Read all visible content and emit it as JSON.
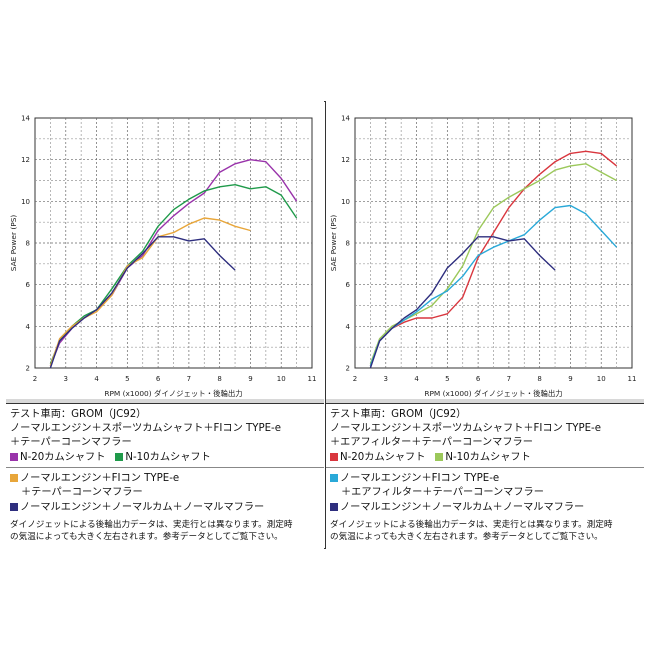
{
  "chart_data": [
    {
      "type": "line",
      "xlabel": "RPM (x1000) ダイノジェット・後輪出力",
      "ylabel": "SAE Power (PS)",
      "xlim": [
        2,
        11
      ],
      "ylim": [
        2,
        14
      ],
      "xticks": [
        2,
        3,
        4,
        5,
        6,
        7,
        8,
        9,
        10,
        11
      ],
      "yticks": [
        2,
        4,
        6,
        8,
        10,
        12,
        14
      ],
      "grid": true,
      "series": [
        {
          "name": "N-20カムシャフト",
          "color": "#9933aa",
          "x": [
            2.5,
            2.8,
            3.2,
            3.6,
            4.0,
            4.5,
            5.0,
            5.5,
            6.0,
            6.5,
            7.0,
            7.5,
            8.0,
            8.5,
            9.0,
            9.5,
            10.0,
            10.5
          ],
          "y": [
            2.1,
            3.2,
            3.9,
            4.4,
            4.8,
            5.5,
            6.8,
            7.4,
            8.6,
            9.3,
            9.9,
            10.4,
            11.4,
            11.8,
            12.0,
            11.9,
            11.1,
            10.0
          ]
        },
        {
          "name": "N-10カムシャフト",
          "color": "#1f9a4a",
          "x": [
            2.5,
            2.8,
            3.2,
            3.6,
            4.0,
            4.5,
            5.0,
            5.5,
            6.0,
            6.5,
            7.0,
            7.5,
            8.0,
            8.5,
            9.0,
            9.5,
            10.0,
            10.5
          ],
          "y": [
            2.2,
            3.3,
            4.0,
            4.5,
            4.8,
            5.8,
            6.9,
            7.6,
            8.8,
            9.6,
            10.1,
            10.5,
            10.7,
            10.8,
            10.6,
            10.7,
            10.3,
            9.2
          ]
        },
        {
          "color": "#e8a63a",
          "x": [
            2.5,
            2.8,
            3.2,
            3.6,
            4.0,
            4.5,
            5.0,
            5.5,
            6.0,
            6.5,
            7.0,
            7.5,
            8.0,
            8.5,
            9.0
          ],
          "y": [
            2.1,
            3.4,
            4.0,
            4.4,
            4.7,
            5.5,
            6.9,
            7.3,
            8.3,
            8.5,
            8.9,
            9.2,
            9.1,
            8.8,
            8.6
          ]
        },
        {
          "color": "#2e2e7e",
          "x": [
            2.5,
            2.8,
            3.2,
            3.6,
            4.0,
            4.5,
            5.0,
            5.5,
            6.0,
            6.5,
            7.0,
            7.5,
            8.0,
            8.5
          ],
          "y": [
            2.0,
            3.3,
            3.9,
            4.4,
            4.8,
            5.6,
            6.8,
            7.5,
            8.3,
            8.3,
            8.1,
            8.2,
            7.4,
            6.7
          ]
        }
      ]
    },
    {
      "type": "line",
      "xlabel": "RPM (x1000) ダイノジェット・後輪出力",
      "ylabel": "SAE Power (PS)",
      "xlim": [
        2,
        11
      ],
      "ylim": [
        2,
        14
      ],
      "xticks": [
        2,
        3,
        4,
        5,
        6,
        7,
        8,
        9,
        10,
        11
      ],
      "yticks": [
        2,
        4,
        6,
        8,
        10,
        12,
        14
      ],
      "grid": true,
      "series": [
        {
          "name": "N-20カムシャフト",
          "color": "#d9363e",
          "x": [
            2.5,
            2.8,
            3.2,
            3.6,
            4.0,
            4.5,
            5.0,
            5.5,
            6.0,
            6.5,
            7.0,
            7.5,
            8.0,
            8.5,
            9.0,
            9.5,
            10.0,
            10.5
          ],
          "y": [
            2.1,
            3.3,
            3.9,
            4.2,
            4.4,
            4.4,
            4.6,
            5.4,
            7.3,
            8.5,
            9.7,
            10.6,
            11.3,
            11.9,
            12.3,
            12.4,
            12.3,
            11.7
          ]
        },
        {
          "name": "N-10カムシャフト",
          "color": "#9bc85a",
          "x": [
            2.5,
            2.8,
            3.2,
            3.6,
            4.0,
            4.5,
            5.0,
            5.5,
            6.0,
            6.5,
            7.0,
            7.5,
            8.0,
            8.5,
            9.0,
            9.5,
            10.0,
            10.5
          ],
          "y": [
            2.2,
            3.4,
            4.0,
            4.3,
            4.6,
            5.0,
            5.8,
            6.9,
            8.6,
            9.7,
            10.2,
            10.6,
            11.0,
            11.5,
            11.7,
            11.8,
            11.4,
            11.0
          ]
        },
        {
          "color": "#2aa9d8",
          "x": [
            2.5,
            2.8,
            3.2,
            3.6,
            4.0,
            4.5,
            5.0,
            5.5,
            6.0,
            6.5,
            7.0,
            7.5,
            8.0,
            8.5,
            9.0,
            9.5,
            10.0,
            10.5
          ],
          "y": [
            2.1,
            3.3,
            3.9,
            4.3,
            4.7,
            5.3,
            5.7,
            6.4,
            7.4,
            7.8,
            8.1,
            8.4,
            9.1,
            9.7,
            9.8,
            9.4,
            8.6,
            7.8
          ]
        },
        {
          "color": "#2e2e7e",
          "x": [
            2.5,
            2.8,
            3.2,
            3.6,
            4.0,
            4.5,
            5.0,
            5.5,
            6.0,
            6.5,
            7.0,
            7.5,
            8.0,
            8.5
          ],
          "y": [
            2.0,
            3.3,
            3.9,
            4.4,
            4.8,
            5.6,
            6.8,
            7.5,
            8.3,
            8.3,
            8.1,
            8.2,
            7.4,
            6.7
          ]
        }
      ]
    }
  ],
  "legend_left": {
    "vehicle": "テスト車両：GROM（JC92）",
    "line1": "ノーマルエンジン＋スポーツカムシャフト＋FIコン TYPE-e",
    "line2": "＋テーパーコーンマフラー",
    "cam_a": "N-20カムシャフト",
    "cam_b": "N-10カムシャフト",
    "alt1a": "ノーマルエンジン＋FIコン TYPE-e",
    "alt1b": "＋テーパーコーンマフラー",
    "alt2": "ノーマルエンジン＋ノーマルカム＋ノーマルマフラー",
    "note1": "ダイノジェットによる後輪出力データは、実走行とは異なります。測定時",
    "note2": "の気温によっても大きく左右されます。参考データとしてご覧下さい。"
  },
  "legend_right": {
    "vehicle": "テスト車両：GROM（JC92）",
    "line1": "ノーマルエンジン＋スポーツカムシャフト＋FIコン TYPE-e",
    "line2": "＋エアフィルター＋テーパーコーンマフラー",
    "cam_a": "N-20カムシャフト",
    "cam_b": "N-10カムシャフト",
    "alt1a": "ノーマルエンジン＋FIコン TYPE-e",
    "alt1b": "＋エアフィルター＋テーパーコーンマフラー",
    "alt2": "ノーマルエンジン＋ノーマルカム＋ノーマルマフラー",
    "note1": "ダイノジェットによる後輪出力データは、実走行とは異なります。測定時",
    "note2": "の気温によっても大きく左右されます。参考データとしてご覧下さい。"
  },
  "colors": {
    "left_cam_a": "#9933aa",
    "left_cam_b": "#1f9a4a",
    "left_alt1": "#e8a63a",
    "left_alt2": "#2e2e7e",
    "right_cam_a": "#d9363e",
    "right_cam_b": "#9bc85a",
    "right_alt1": "#2aa9d8",
    "right_alt2": "#2e2e7e"
  }
}
